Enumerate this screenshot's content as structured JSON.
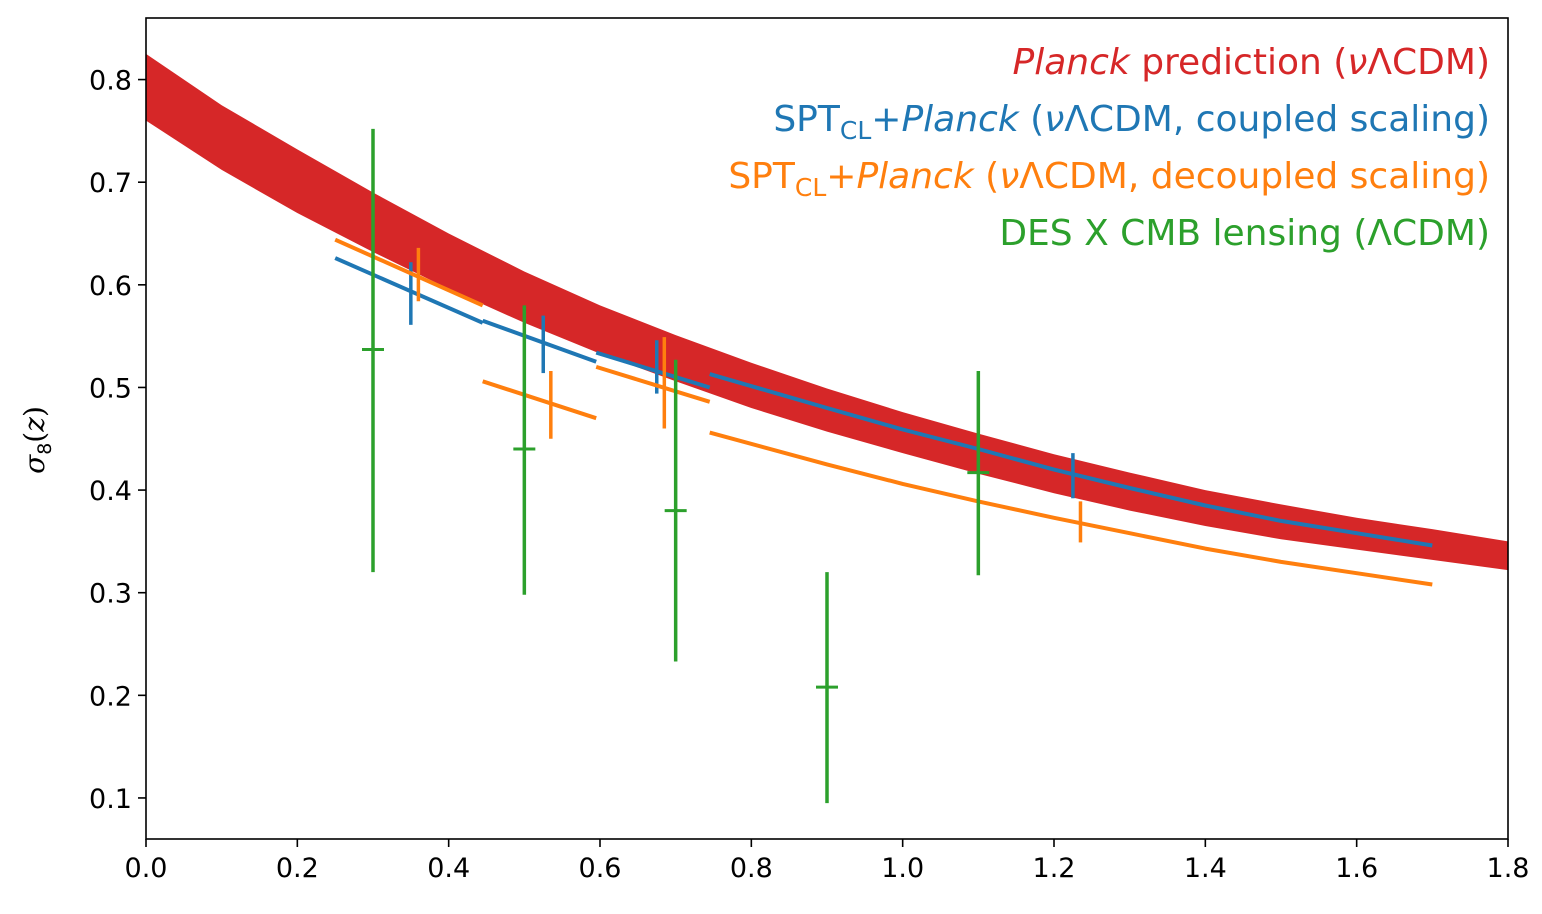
{
  "chart_data": {
    "type": "line",
    "xlim": [
      0.0,
      1.8
    ],
    "ylim": [
      0.06,
      0.86
    ],
    "ylabel": "σ8(z)",
    "xlabel": "",
    "x_ticks": [
      0.0,
      0.2,
      0.4,
      0.6,
      0.8,
      1.0,
      1.2,
      1.4,
      1.6,
      1.8
    ],
    "x_tick_labels": [
      "0.0",
      "0.2",
      "0.4",
      "0.6",
      "0.8",
      "1.0",
      "1.2",
      "1.4",
      "1.6",
      "1.8"
    ],
    "y_ticks": [
      0.1,
      0.2,
      0.3,
      0.4,
      0.5,
      0.6,
      0.7,
      0.8
    ],
    "y_tick_labels": [
      "0.1",
      "0.2",
      "0.3",
      "0.4",
      "0.5",
      "0.6",
      "0.7",
      "0.8"
    ],
    "grid": false,
    "legend_position": "top-right",
    "legend": [
      {
        "parts": [
          {
            "text": "Planck",
            "italic": true
          },
          {
            "text": " prediction ("
          },
          {
            "text": "ν",
            "italic": true
          },
          {
            "text": "ΛCDM)"
          }
        ],
        "color": "#d62728"
      },
      {
        "parts": [
          {
            "text": "SPT"
          },
          {
            "text": "CL",
            "sub": true
          },
          {
            "text": "+"
          },
          {
            "text": "Planck",
            "italic": true
          },
          {
            "text": " ("
          },
          {
            "text": "ν",
            "italic": true
          },
          {
            "text": "ΛCDM, coupled scaling)"
          }
        ],
        "color": "#1f77b4"
      },
      {
        "parts": [
          {
            "text": "SPT"
          },
          {
            "text": "CL",
            "sub": true
          },
          {
            "text": "+"
          },
          {
            "text": "Planck",
            "italic": true
          },
          {
            "text": " ("
          },
          {
            "text": "ν",
            "italic": true
          },
          {
            "text": "ΛCDM, decoupled scaling)"
          }
        ],
        "color": "#ff7f0e"
      },
      {
        "parts": [
          {
            "text": "DES X CMB lensing (ΛCDM)"
          }
        ],
        "color": "#2ca02c"
      }
    ],
    "series": [
      {
        "kind": "band",
        "color": "#d62728",
        "x": [
          0.0,
          0.1,
          0.2,
          0.3,
          0.4,
          0.5,
          0.6,
          0.7,
          0.8,
          0.9,
          1.0,
          1.1,
          1.2,
          1.3,
          1.4,
          1.5,
          1.6,
          1.7,
          1.8
        ],
        "upper": [
          0.825,
          0.775,
          0.732,
          0.69,
          0.65,
          0.613,
          0.58,
          0.551,
          0.524,
          0.499,
          0.476,
          0.455,
          0.435,
          0.417,
          0.4,
          0.386,
          0.373,
          0.362,
          0.35
        ],
        "lower": [
          0.76,
          0.712,
          0.67,
          0.632,
          0.596,
          0.563,
          0.533,
          0.506,
          0.48,
          0.457,
          0.436,
          0.416,
          0.397,
          0.38,
          0.365,
          0.352,
          0.342,
          0.332,
          0.322
        ]
      },
      {
        "kind": "segments",
        "color": "#1f77b4",
        "segments": [
          {
            "x": [
              0.25,
              0.445
            ],
            "y": [
              0.626,
              0.563
            ]
          },
          {
            "x": [
              0.445,
              0.595
            ],
            "y": [
              0.565,
              0.525
            ]
          },
          {
            "x": [
              0.595,
              0.745
            ],
            "y": [
              0.534,
              0.5
            ]
          },
          {
            "x": [
              0.745,
              0.9,
              1.0,
              1.1,
              1.2,
              1.3,
              1.4,
              1.5,
              1.6,
              1.7
            ],
            "y": [
              0.513,
              0.48,
              0.459,
              0.44,
              0.42,
              0.402,
              0.385,
              0.37,
              0.358,
              0.346
            ]
          }
        ],
        "points": [
          {
            "x": 0.35,
            "y": 0.593,
            "ylow": 0.561,
            "yhigh": 0.622
          },
          {
            "x": 0.525,
            "y": 0.542,
            "ylow": 0.514,
            "yhigh": 0.57
          },
          {
            "x": 0.675,
            "y": 0.52,
            "ylow": 0.494,
            "yhigh": 0.546
          },
          {
            "x": 1.225,
            "y": 0.414,
            "ylow": 0.392,
            "yhigh": 0.436
          }
        ]
      },
      {
        "kind": "segments",
        "color": "#ff7f0e",
        "segments": [
          {
            "x": [
              0.25,
              0.445
            ],
            "y": [
              0.644,
              0.58
            ]
          },
          {
            "x": [
              0.445,
              0.595
            ],
            "y": [
              0.506,
              0.47
            ]
          },
          {
            "x": [
              0.595,
              0.745
            ],
            "y": [
              0.52,
              0.486
            ]
          },
          {
            "x": [
              0.745,
              0.9,
              1.0,
              1.1,
              1.2,
              1.3,
              1.4,
              1.5,
              1.6,
              1.7
            ],
            "y": [
              0.456,
              0.425,
              0.406,
              0.389,
              0.373,
              0.358,
              0.343,
              0.33,
              0.319,
              0.308
            ]
          }
        ],
        "points": [
          {
            "x": 0.36,
            "y": 0.608,
            "ylow": 0.584,
            "yhigh": 0.636
          },
          {
            "x": 0.535,
            "y": 0.483,
            "ylow": 0.45,
            "yhigh": 0.516
          },
          {
            "x": 0.685,
            "y": 0.503,
            "ylow": 0.46,
            "yhigh": 0.549
          },
          {
            "x": 1.235,
            "y": 0.368,
            "ylow": 0.349,
            "yhigh": 0.389
          }
        ]
      },
      {
        "kind": "errorbar",
        "color": "#2ca02c",
        "points": [
          {
            "x": 0.3,
            "y": 0.537,
            "ylow": 0.32,
            "yhigh": 0.752
          },
          {
            "x": 0.5,
            "y": 0.44,
            "ylow": 0.298,
            "yhigh": 0.58
          },
          {
            "x": 0.7,
            "y": 0.38,
            "ylow": 0.233,
            "yhigh": 0.527
          },
          {
            "x": 0.9,
            "y": 0.208,
            "ylow": 0.095,
            "yhigh": 0.32
          },
          {
            "x": 1.1,
            "y": 0.417,
            "ylow": 0.317,
            "yhigh": 0.516
          }
        ]
      }
    ]
  }
}
